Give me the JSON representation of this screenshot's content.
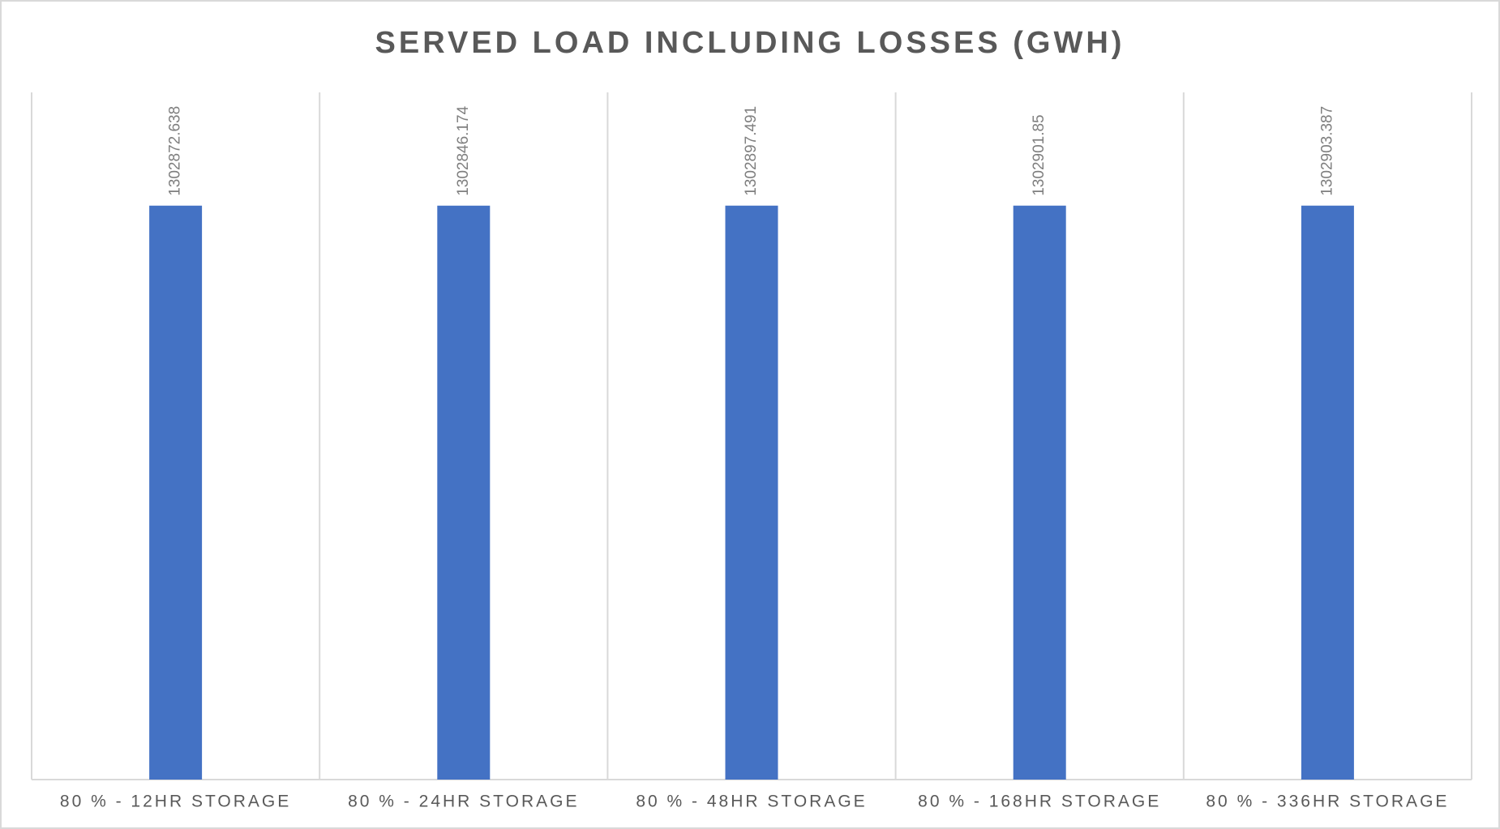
{
  "chart_data": {
    "type": "bar",
    "title": "SERVED LOAD INCLUDING LOSSES (GWH)",
    "categories": [
      "80 % - 12HR STORAGE",
      "80 % - 24HR STORAGE",
      "80 % - 48HR STORAGE",
      "80 % - 168HR STORAGE",
      "80 % - 336HR STORAGE"
    ],
    "values": [
      1302872.638,
      1302846.174,
      1302897.491,
      1302901.85,
      1302903.387
    ],
    "color": "#4472c4",
    "ylim": [
      0,
      1560000
    ]
  }
}
